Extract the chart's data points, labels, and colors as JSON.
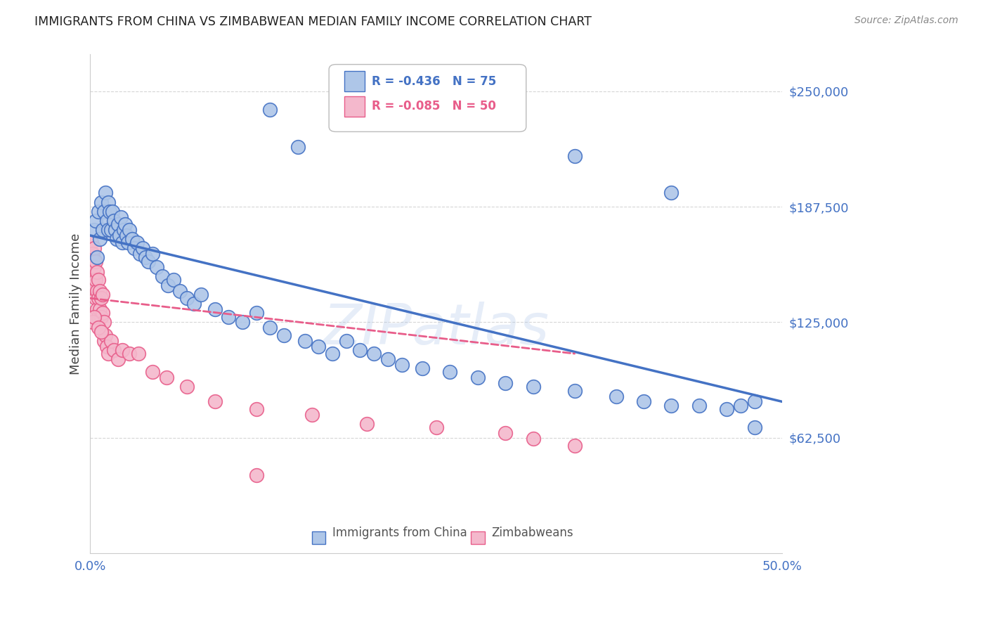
{
  "title": "IMMIGRANTS FROM CHINA VS ZIMBABWEAN MEDIAN FAMILY INCOME CORRELATION CHART",
  "source": "Source: ZipAtlas.com",
  "ylabel": "Median Family Income",
  "yticks": [
    62500,
    125000,
    187500,
    250000
  ],
  "ytick_labels": [
    "$62,500",
    "$125,000",
    "$187,500",
    "$250,000"
  ],
  "ylim": [
    0,
    270000
  ],
  "xlim": [
    0,
    0.5
  ],
  "legend_r_values": [
    "-0.436",
    "-0.085"
  ],
  "legend_n_values": [
    "75",
    "50"
  ],
  "blue_color": "#4472c4",
  "pink_color": "#e85d8a",
  "blue_fill": "#aec6e8",
  "pink_fill": "#f4b8cc",
  "watermark": "ZIPatlas",
  "china_scatter_x": [
    0.003,
    0.004,
    0.005,
    0.006,
    0.007,
    0.008,
    0.009,
    0.01,
    0.011,
    0.012,
    0.013,
    0.013,
    0.014,
    0.015,
    0.016,
    0.017,
    0.018,
    0.019,
    0.02,
    0.021,
    0.022,
    0.023,
    0.024,
    0.025,
    0.026,
    0.027,
    0.028,
    0.03,
    0.032,
    0.034,
    0.036,
    0.038,
    0.04,
    0.042,
    0.045,
    0.048,
    0.052,
    0.056,
    0.06,
    0.065,
    0.07,
    0.075,
    0.08,
    0.09,
    0.1,
    0.11,
    0.12,
    0.13,
    0.14,
    0.155,
    0.165,
    0.175,
    0.185,
    0.195,
    0.205,
    0.215,
    0.225,
    0.24,
    0.26,
    0.28,
    0.3,
    0.32,
    0.35,
    0.38,
    0.4,
    0.42,
    0.44,
    0.46,
    0.47,
    0.48,
    0.13,
    0.35,
    0.15,
    0.42,
    0.48
  ],
  "china_scatter_y": [
    175000,
    180000,
    160000,
    185000,
    170000,
    190000,
    175000,
    185000,
    195000,
    180000,
    175000,
    190000,
    185000,
    175000,
    185000,
    180000,
    175000,
    170000,
    178000,
    172000,
    182000,
    168000,
    175000,
    178000,
    172000,
    168000,
    175000,
    170000,
    165000,
    168000,
    162000,
    165000,
    160000,
    158000,
    162000,
    155000,
    150000,
    145000,
    148000,
    142000,
    138000,
    135000,
    140000,
    132000,
    128000,
    125000,
    130000,
    122000,
    118000,
    115000,
    112000,
    108000,
    115000,
    110000,
    108000,
    105000,
    102000,
    100000,
    98000,
    95000,
    92000,
    90000,
    88000,
    85000,
    82000,
    80000,
    80000,
    78000,
    80000,
    82000,
    240000,
    215000,
    220000,
    195000,
    68000
  ],
  "zimbabwe_scatter_x": [
    0.001,
    0.001,
    0.002,
    0.002,
    0.002,
    0.003,
    0.003,
    0.003,
    0.004,
    0.004,
    0.004,
    0.005,
    0.005,
    0.005,
    0.006,
    0.006,
    0.006,
    0.007,
    0.007,
    0.008,
    0.008,
    0.009,
    0.009,
    0.01,
    0.01,
    0.011,
    0.012,
    0.013,
    0.015,
    0.017,
    0.02,
    0.023,
    0.028,
    0.035,
    0.045,
    0.055,
    0.07,
    0.09,
    0.12,
    0.16,
    0.2,
    0.25,
    0.3,
    0.32,
    0.35,
    0.002,
    0.003,
    0.006,
    0.008,
    0.12
  ],
  "zimbabwe_scatter_y": [
    168000,
    155000,
    162000,
    148000,
    158000,
    155000,
    145000,
    165000,
    158000,
    148000,
    138000,
    152000,
    142000,
    132000,
    148000,
    138000,
    128000,
    142000,
    132000,
    138000,
    128000,
    140000,
    130000,
    125000,
    115000,
    118000,
    112000,
    108000,
    115000,
    110000,
    105000,
    110000,
    108000,
    108000,
    98000,
    95000,
    90000,
    82000,
    78000,
    75000,
    70000,
    68000,
    65000,
    62000,
    58000,
    125000,
    128000,
    122000,
    120000,
    42000
  ],
  "blue_trendline_x": [
    0.0,
    0.5
  ],
  "blue_trendline_y": [
    172000,
    82000
  ],
  "pink_trendline_x": [
    0.0,
    0.35
  ],
  "pink_trendline_y": [
    138000,
    108000
  ],
  "background_color": "#ffffff",
  "grid_color": "#cccccc",
  "title_color": "#222222",
  "ylabel_color": "#444444",
  "right_tick_color": "#4472c4",
  "bottom_tick_color": "#4472c4"
}
